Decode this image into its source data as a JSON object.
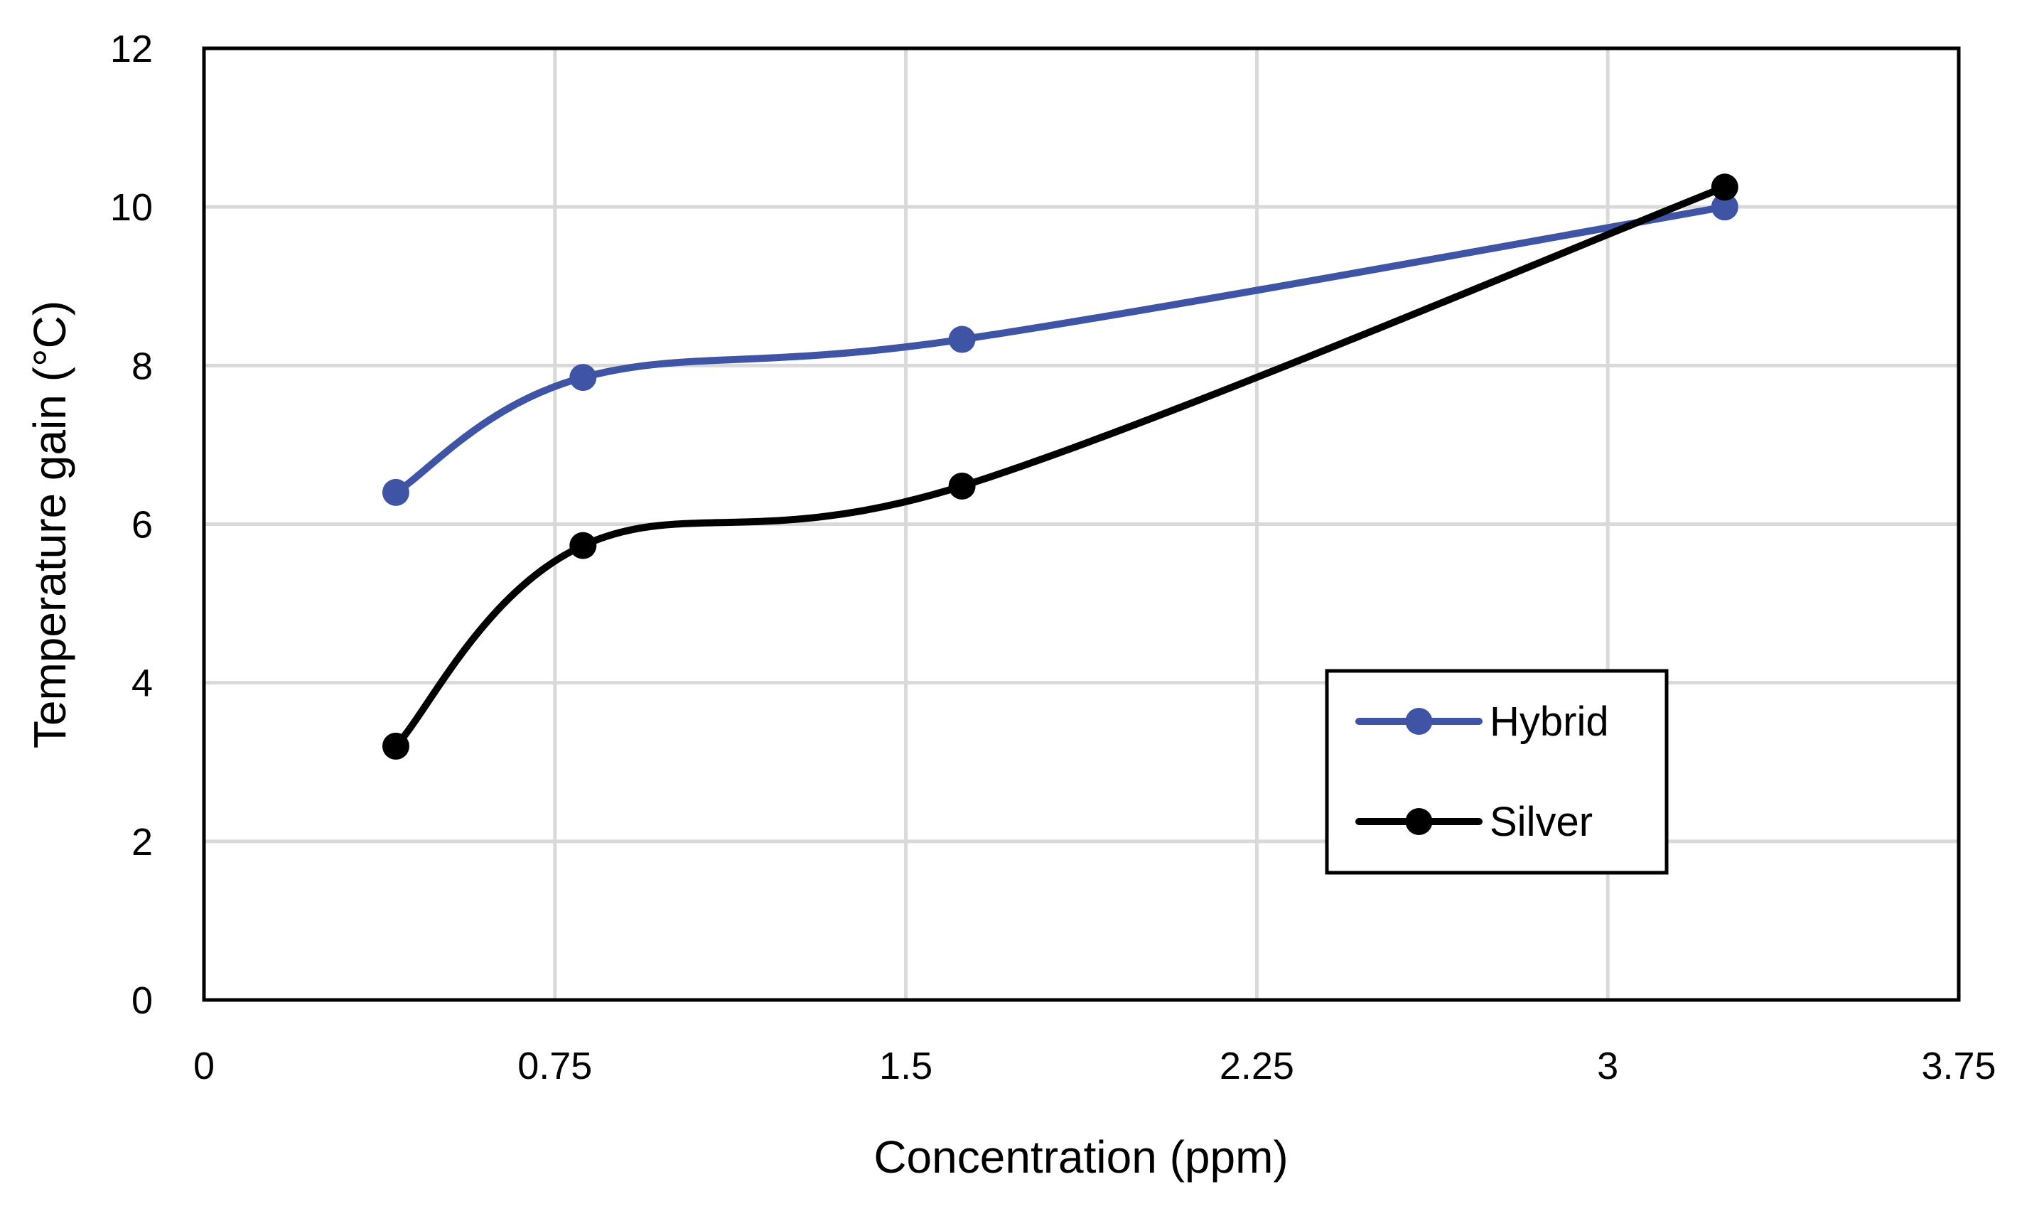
{
  "chart_data": {
    "type": "line",
    "title": "",
    "xlabel": "Concentration (ppm)",
    "ylabel": "Temperature gain (°C)",
    "xlim": [
      0,
      3.75
    ],
    "ylim": [
      0,
      12
    ],
    "xticks": [
      0,
      0.75,
      1.5,
      2.25,
      3,
      3.75
    ],
    "xtick_labels": [
      "0",
      "0.75",
      "1.5",
      "2.25",
      "3",
      "3.75"
    ],
    "yticks": [
      0,
      2,
      4,
      6,
      8,
      10,
      12
    ],
    "ytick_labels": [
      "0",
      "2",
      "4",
      "6",
      "8",
      "10",
      "12"
    ],
    "grid": true,
    "smooth": true,
    "legend_position": "bottom-right",
    "series": [
      {
        "name": "Hybrid",
        "color": "#3f54a4",
        "x": [
          0.41,
          0.81,
          1.62,
          3.25
        ],
        "y": [
          6.4,
          7.85,
          8.33,
          10.0
        ]
      },
      {
        "name": "Silver",
        "color": "#000000",
        "x": [
          0.41,
          0.81,
          1.62,
          3.25
        ],
        "y": [
          3.2,
          5.73,
          6.48,
          10.25
        ]
      }
    ]
  }
}
